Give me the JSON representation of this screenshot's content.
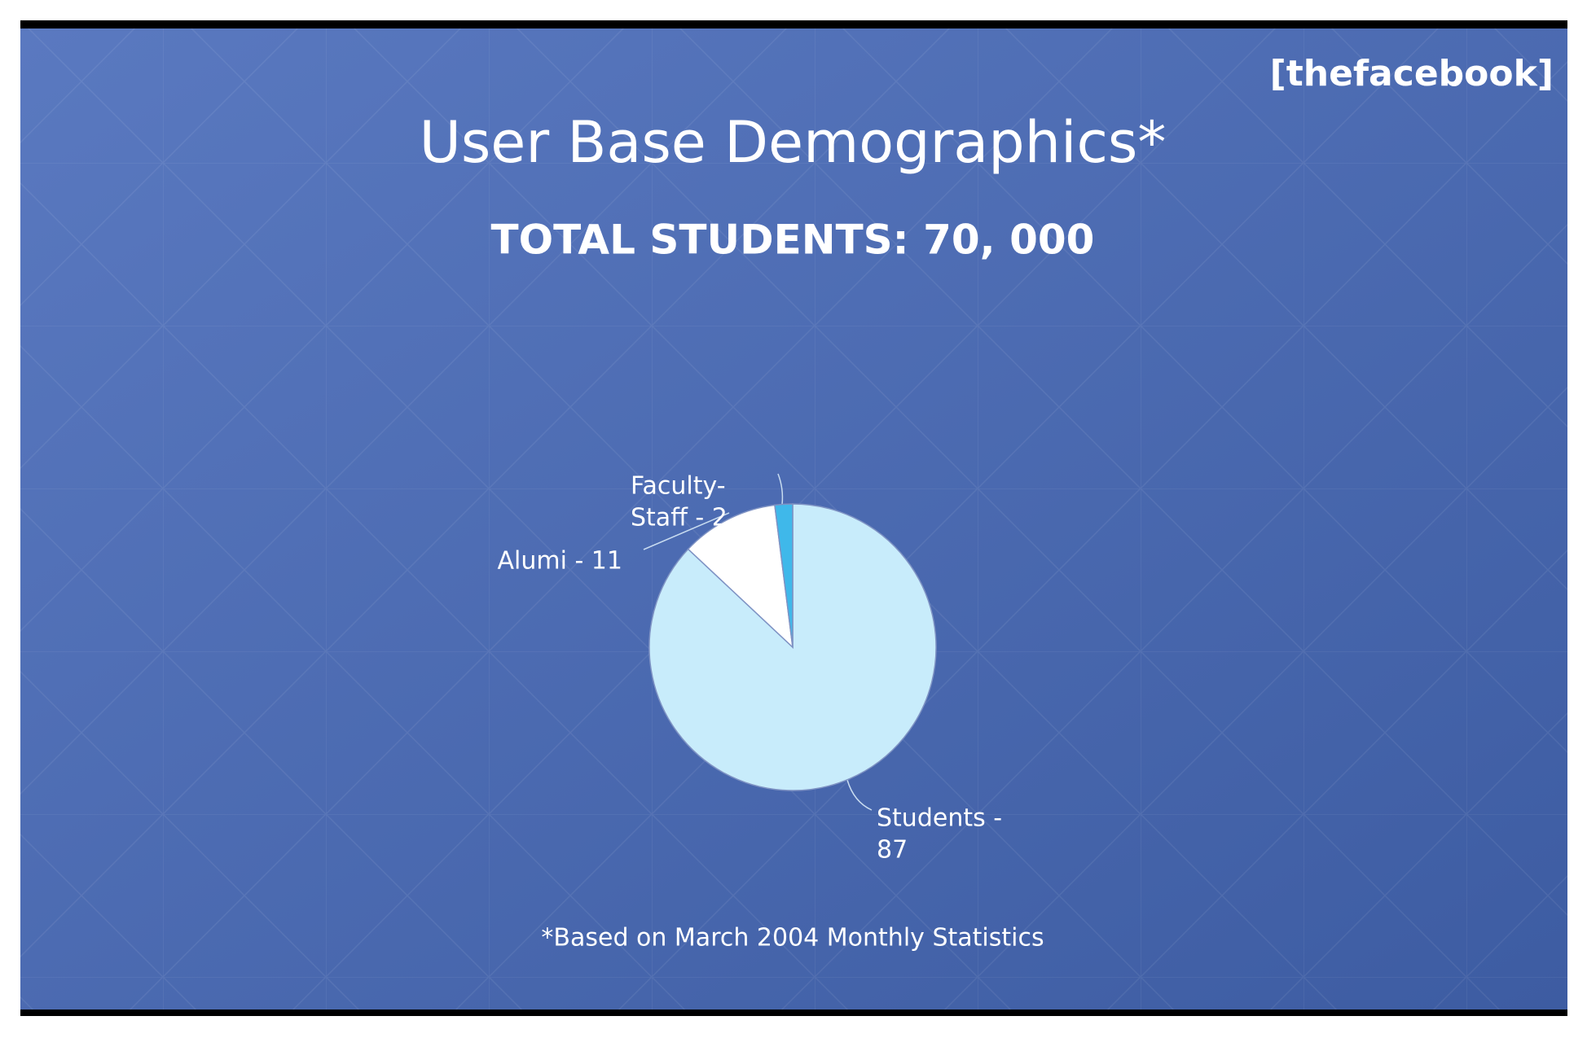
{
  "logo": "[thefacebook]",
  "chart_data": {
    "type": "pie",
    "title": "User Base Demographics*",
    "subtitle": "TOTAL STUDENTS: 70, 000",
    "values": [
      87,
      11,
      2
    ],
    "value_labels": [
      [
        "Students -",
        "87"
      ],
      [
        "Alumi - 11"
      ],
      [
        "Faculty-",
        "Staff - 2"
      ]
    ],
    "colors": [
      "#c8ecfb",
      "#ffffff",
      "#3fb8ea"
    ],
    "note": "*Based on March 2004 Monthly Statistics"
  }
}
